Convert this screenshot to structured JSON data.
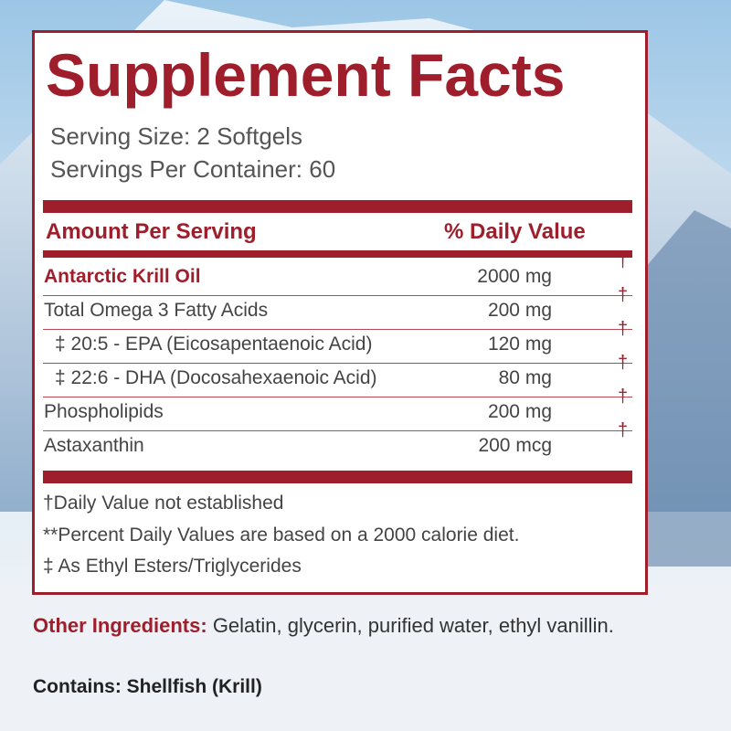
{
  "panel": {
    "title": "Supplement Facts",
    "serving_size": "Serving Size: 2 Softgels",
    "servings_per_container": "Servings Per Container: 60",
    "header": {
      "amount": "Amount Per Serving",
      "daily_value": "% Daily Value"
    },
    "rows": [
      {
        "name": "Antarctic Krill Oil",
        "amount": "2000 mg",
        "dv": "†"
      },
      {
        "name": "Total Omega 3 Fatty Acids",
        "amount": "200 mg",
        "dv": "†"
      },
      {
        "name": "‡ 20:5 - EPA (Eicosapentaenoic Acid)",
        "amount": "120 mg",
        "dv": "†"
      },
      {
        "name": "‡ 22:6 - DHA (Docosahexaenoic Acid)",
        "amount": "80 mg",
        "dv": "†"
      },
      {
        "name": "Phospholipids",
        "amount": "200 mg",
        "dv": "†"
      },
      {
        "name": "Astaxanthin",
        "amount": "200 mcg",
        "dv": "†"
      }
    ],
    "footnotes": [
      "†Daily Value not established",
      "**Percent Daily Values are based on a 2000 calorie diet.",
      "‡ As Ethyl Esters/Triglycerides"
    ]
  },
  "other_ingredients": {
    "label": "Other Ingredients:",
    "text": "Gelatin, glycerin, purified water, ethyl vanillin."
  },
  "contains": "Contains: Shellfish (Krill)"
}
